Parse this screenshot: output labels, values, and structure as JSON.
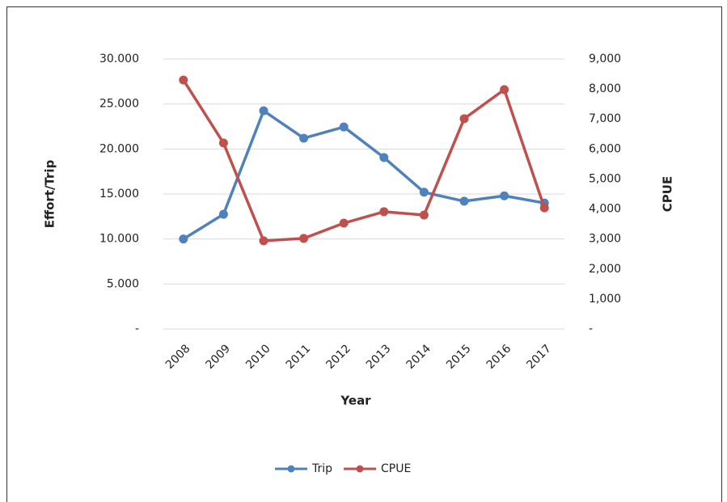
{
  "chart_data": {
    "type": "line",
    "categories": [
      "2008",
      "2009",
      "2010",
      "2011",
      "2012",
      "2013",
      "2014",
      "2015",
      "2016",
      "2017"
    ],
    "x_label": "Year",
    "y_label": "Effort/Trip",
    "y2_label": "CPUE",
    "series": [
      {
        "name": "Trip",
        "color": "#4f81bd",
        "values": [
          10000,
          12750,
          24250,
          21200,
          22450,
          19050,
          15200,
          14200,
          14800,
          14000
        ]
      },
      {
        "name": "CPUE",
        "color": "#c0504d",
        "axis": "y2",
        "values": [
          8300,
          6200,
          2940,
          3020,
          3530,
          3910,
          3800,
          7010,
          7980,
          4040
        ]
      }
    ],
    "ylim": [
      0,
      30000
    ],
    "yticks": [
      {
        "value": 0,
        "label": "-"
      },
      {
        "value": 5000,
        "label": "5.000"
      },
      {
        "value": 10000,
        "label": "10.000"
      },
      {
        "value": 15000,
        "label": "15.000"
      },
      {
        "value": 20000,
        "label": "20.000"
      },
      {
        "value": 25000,
        "label": "25.000"
      },
      {
        "value": 30000,
        "label": "30.000"
      }
    ],
    "y2lim": [
      0,
      9000
    ],
    "y2ticks": [
      {
        "value": 0,
        "label": "-"
      },
      {
        "value": 1000,
        "label": "1,000"
      },
      {
        "value": 2000,
        "label": "2,000"
      },
      {
        "value": 3000,
        "label": "3,000"
      },
      {
        "value": 4000,
        "label": "4,000"
      },
      {
        "value": 5000,
        "label": "5,000"
      },
      {
        "value": 6000,
        "label": "6,000"
      },
      {
        "value": 7000,
        "label": "7,000"
      },
      {
        "value": 8000,
        "label": "8,000"
      },
      {
        "value": 9000,
        "label": "9,000"
      }
    ],
    "grid": true,
    "legend": "bottom"
  }
}
